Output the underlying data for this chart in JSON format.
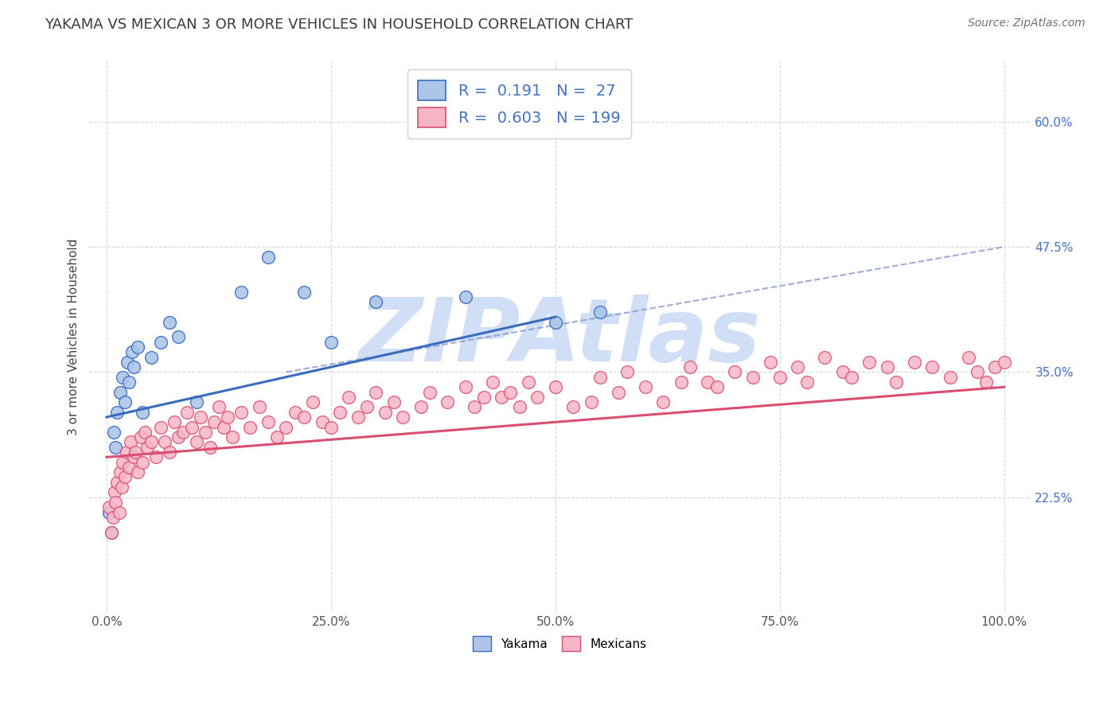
{
  "title": "YAKAMA VS MEXICAN 3 OR MORE VEHICLES IN HOUSEHOLD CORRELATION CHART",
  "source_text": "Source: ZipAtlas.com",
  "ylabel": "3 or more Vehicles in Household",
  "xlabel": "",
  "xlim": [
    -2.0,
    103.0
  ],
  "ylim": [
    11.0,
    66.0
  ],
  "yticks": [
    22.5,
    35.0,
    47.5,
    60.0
  ],
  "xticks": [
    0.0,
    25.0,
    50.0,
    75.0,
    100.0
  ],
  "yakama_R": 0.191,
  "yakama_N": 27,
  "mexican_R": 0.603,
  "mexican_N": 199,
  "yakama_color": "#adc6e8",
  "mexican_color": "#f7b6c8",
  "yakama_line_color": "#3a6bbf",
  "mexican_line_color": "#d94f72",
  "dashed_line_color": "#8899cc",
  "title_color": "#3a3a3a",
  "source_color": "#707070",
  "legend_text_color": "#4472c4",
  "watermark": "ZIPAtlas",
  "watermark_color": "#d0dff5",
  "background_color": "#ffffff",
  "grid_color": "#c8d4e8",
  "yakama_scatter_x": [
    0.3,
    0.5,
    0.8,
    1.0,
    1.2,
    1.5,
    1.8,
    2.0,
    2.3,
    2.5,
    2.8,
    3.0,
    3.5,
    4.0,
    5.0,
    6.0,
    7.0,
    8.0,
    10.0,
    15.0,
    18.0,
    22.0,
    25.0,
    30.0,
    40.0,
    50.0,
    55.0
  ],
  "yakama_scatter_y": [
    21.0,
    19.0,
    29.0,
    27.5,
    31.0,
    33.0,
    34.5,
    32.0,
    36.0,
    34.0,
    37.0,
    35.5,
    37.5,
    31.0,
    36.5,
    38.0,
    40.0,
    38.5,
    32.0,
    43.0,
    46.5,
    43.0,
    38.0,
    42.0,
    42.5,
    40.0,
    41.0
  ],
  "yakama_line_x0": 0.0,
  "yakama_line_y0": 30.5,
  "yakama_line_x1": 50.0,
  "yakama_line_y1": 40.5,
  "dashed_line_x0": 20.0,
  "dashed_line_y0": 35.0,
  "dashed_line_x1": 100.0,
  "dashed_line_y1": 47.5,
  "mexican_line_x0": 0.0,
  "mexican_line_y0": 26.5,
  "mexican_line_x1": 100.0,
  "mexican_line_y1": 33.5,
  "mexican_scatter_x": [
    0.3,
    0.5,
    0.7,
    0.9,
    1.0,
    1.2,
    1.4,
    1.5,
    1.7,
    1.8,
    2.0,
    2.2,
    2.5,
    2.7,
    3.0,
    3.2,
    3.5,
    3.8,
    4.0,
    4.3,
    4.5,
    5.0,
    5.5,
    6.0,
    6.5,
    7.0,
    7.5,
    8.0,
    8.5,
    9.0,
    9.5,
    10.0,
    10.5,
    11.0,
    11.5,
    12.0,
    12.5,
    13.0,
    13.5,
    14.0,
    15.0,
    16.0,
    17.0,
    18.0,
    19.0,
    20.0,
    21.0,
    22.0,
    23.0,
    24.0,
    25.0,
    26.0,
    27.0,
    28.0,
    29.0,
    30.0,
    31.0,
    32.0,
    33.0,
    35.0,
    36.0,
    38.0,
    40.0,
    41.0,
    42.0,
    43.0,
    44.0,
    45.0,
    46.0,
    47.0,
    48.0,
    50.0,
    52.0,
    54.0,
    55.0,
    57.0,
    58.0,
    60.0,
    62.0,
    64.0,
    65.0,
    67.0,
    68.0,
    70.0,
    72.0,
    74.0,
    75.0,
    77.0,
    78.0,
    80.0,
    82.0,
    83.0,
    85.0,
    87.0,
    88.0,
    90.0,
    92.0,
    94.0,
    96.0,
    97.0,
    98.0,
    99.0,
    100.0
  ],
  "mexican_scatter_y": [
    21.5,
    19.0,
    20.5,
    23.0,
    22.0,
    24.0,
    21.0,
    25.0,
    23.5,
    26.0,
    24.5,
    27.0,
    25.5,
    28.0,
    26.5,
    27.0,
    25.0,
    28.5,
    26.0,
    29.0,
    27.5,
    28.0,
    26.5,
    29.5,
    28.0,
    27.0,
    30.0,
    28.5,
    29.0,
    31.0,
    29.5,
    28.0,
    30.5,
    29.0,
    27.5,
    30.0,
    31.5,
    29.5,
    30.5,
    28.5,
    31.0,
    29.5,
    31.5,
    30.0,
    28.5,
    29.5,
    31.0,
    30.5,
    32.0,
    30.0,
    29.5,
    31.0,
    32.5,
    30.5,
    31.5,
    33.0,
    31.0,
    32.0,
    30.5,
    31.5,
    33.0,
    32.0,
    33.5,
    31.5,
    32.5,
    34.0,
    32.5,
    33.0,
    31.5,
    34.0,
    32.5,
    33.5,
    31.5,
    32.0,
    34.5,
    33.0,
    35.0,
    33.5,
    32.0,
    34.0,
    35.5,
    34.0,
    33.5,
    35.0,
    34.5,
    36.0,
    34.5,
    35.5,
    34.0,
    36.5,
    35.0,
    34.5,
    36.0,
    35.5,
    34.0,
    36.0,
    35.5,
    34.5,
    36.5,
    35.0,
    34.0,
    35.5,
    36.0
  ]
}
